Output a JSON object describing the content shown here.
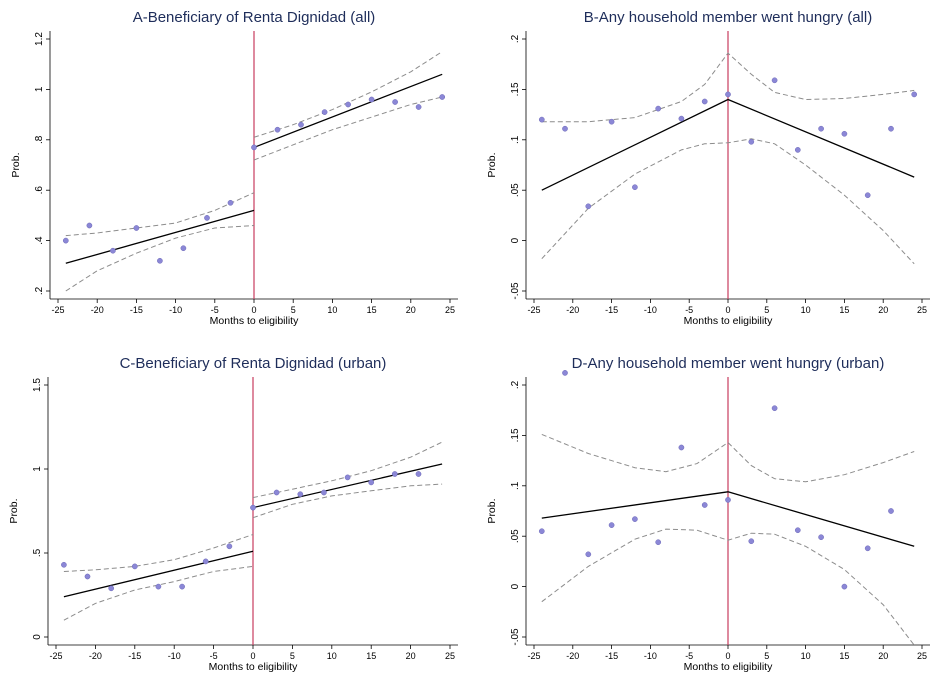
{
  "chart_data": [
    {
      "type": "scatter",
      "title": "A-Beneficiary of Renta Dignidad (all)",
      "xlabel": "Months to eligibility",
      "ylabel": "Prob.",
      "xlim": [
        -25,
        25
      ],
      "ylim": [
        0.2,
        1.2
      ],
      "xticks": [
        -25,
        -20,
        -15,
        -10,
        -5,
        0,
        5,
        10,
        15,
        20,
        25
      ],
      "xticklabels": [
        "-25",
        "-20",
        "-15",
        "-10",
        "-5",
        "0",
        "5",
        "10",
        "15",
        "20",
        "25"
      ],
      "yticks": [
        0.2,
        0.4,
        0.6,
        0.8,
        1,
        1.2
      ],
      "yticklabels": [
        ".2",
        ".4",
        ".6",
        ".8",
        "1",
        "1.2"
      ],
      "cutoff": 0,
      "points": [
        [
          -24,
          0.4
        ],
        [
          -21,
          0.46
        ],
        [
          -18,
          0.36
        ],
        [
          -15,
          0.45
        ],
        [
          -12,
          0.32
        ],
        [
          -9,
          0.37
        ],
        [
          -6,
          0.49
        ],
        [
          -3,
          0.55
        ],
        [
          0,
          0.77
        ],
        [
          3,
          0.84
        ],
        [
          6,
          0.86
        ],
        [
          9,
          0.91
        ],
        [
          12,
          0.94
        ],
        [
          15,
          0.96
        ],
        [
          18,
          0.95
        ],
        [
          21,
          0.93
        ],
        [
          24,
          0.97
        ]
      ],
      "fit_left": [
        [
          -24,
          0.31
        ],
        [
          0,
          0.52
        ]
      ],
      "fit_right": [
        [
          0,
          0.77
        ],
        [
          24,
          1.06
        ]
      ],
      "ci_upper": [
        [
          -24,
          0.42
        ],
        [
          -20,
          0.43
        ],
        [
          -15,
          0.45
        ],
        [
          -10,
          0.47
        ],
        [
          -5,
          0.52
        ],
        [
          0,
          0.59
        ],
        [
          0,
          0.81
        ],
        [
          5,
          0.86
        ],
        [
          10,
          0.92
        ],
        [
          15,
          0.99
        ],
        [
          20,
          1.07
        ],
        [
          24,
          1.15
        ]
      ],
      "ci_lower": [
        [
          -24,
          0.2
        ],
        [
          -20,
          0.28
        ],
        [
          -15,
          0.35
        ],
        [
          -10,
          0.41
        ],
        [
          -5,
          0.45
        ],
        [
          0,
          0.46
        ],
        [
          0,
          0.72
        ],
        [
          5,
          0.78
        ],
        [
          10,
          0.84
        ],
        [
          15,
          0.89
        ],
        [
          20,
          0.94
        ],
        [
          24,
          0.97
        ]
      ],
      "colors": {
        "points": "#8b87d6",
        "fit": "#000000",
        "ci": "#8c8c8c",
        "cutoff": "#c83c5f",
        "title": "#1e2d5a"
      }
    },
    {
      "type": "scatter",
      "title": "B-Any household member went hungry (all)",
      "xlabel": "Months to eligibility",
      "ylabel": "Prob.",
      "xlim": [
        -25,
        25
      ],
      "ylim": [
        -0.05,
        0.2
      ],
      "xticks": [
        -25,
        -20,
        -15,
        -10,
        -5,
        0,
        5,
        10,
        15,
        20,
        25
      ],
      "xticklabels": [
        "-25",
        "-20",
        "-15",
        "-10",
        "-5",
        "0",
        "5",
        "10",
        "15",
        "20",
        "25"
      ],
      "yticks": [
        -0.05,
        0,
        0.05,
        0.1,
        0.15,
        0.2
      ],
      "yticklabels": [
        "-.05",
        "0",
        ".05",
        ".1",
        ".15",
        ".2"
      ],
      "cutoff": 0,
      "points": [
        [
          -24,
          0.12
        ],
        [
          -21,
          0.111
        ],
        [
          -18,
          0.034
        ],
        [
          -15,
          0.118
        ],
        [
          -12,
          0.053
        ],
        [
          -9,
          0.131
        ],
        [
          -6,
          0.121
        ],
        [
          -3,
          0.138
        ],
        [
          0,
          0.145
        ],
        [
          3,
          0.098
        ],
        [
          6,
          0.159
        ],
        [
          9,
          0.09
        ],
        [
          12,
          0.111
        ],
        [
          15,
          0.106
        ],
        [
          18,
          0.045
        ],
        [
          21,
          0.111
        ],
        [
          24,
          0.145
        ]
      ],
      "fit_left": [
        [
          -24,
          0.05
        ],
        [
          0,
          0.14
        ]
      ],
      "fit_right": [
        [
          0,
          0.14
        ],
        [
          24,
          0.063
        ]
      ],
      "ci_upper": [
        [
          -24,
          0.118
        ],
        [
          -18,
          0.118
        ],
        [
          -12,
          0.122
        ],
        [
          -6,
          0.138
        ],
        [
          -3,
          0.155
        ],
        [
          0,
          0.186
        ],
        [
          3,
          0.165
        ],
        [
          6,
          0.147
        ],
        [
          10,
          0.14
        ],
        [
          15,
          0.141
        ],
        [
          20,
          0.145
        ],
        [
          24,
          0.149
        ]
      ],
      "ci_lower": [
        [
          -24,
          -0.018
        ],
        [
          -18,
          0.032
        ],
        [
          -12,
          0.066
        ],
        [
          -6,
          0.09
        ],
        [
          -3,
          0.096
        ],
        [
          0,
          0.097
        ],
        [
          3,
          0.101
        ],
        [
          6,
          0.096
        ],
        [
          10,
          0.075
        ],
        [
          15,
          0.045
        ],
        [
          20,
          0.01
        ],
        [
          24,
          -0.023
        ]
      ],
      "colors": {
        "points": "#8b87d6",
        "fit": "#000000",
        "ci": "#8c8c8c",
        "cutoff": "#c83c5f",
        "title": "#1e2d5a"
      }
    },
    {
      "type": "scatter",
      "title": "C-Beneficiary of Renta Dignidad (urban)",
      "xlabel": "Months to eligibility",
      "ylabel": "Prob.",
      "xlim": [
        -25,
        25
      ],
      "ylim": [
        0,
        1.5
      ],
      "xticks": [
        -25,
        -20,
        -15,
        -10,
        -5,
        0,
        5,
        10,
        15,
        20,
        25
      ],
      "xticklabels": [
        "-25",
        "-20",
        "-15",
        "-10",
        "-5",
        "0",
        "5",
        "10",
        "15",
        "20",
        "25"
      ],
      "yticks": [
        0,
        0.5,
        1,
        1.5
      ],
      "yticklabels": [
        "0",
        ".5",
        "1",
        "1.5"
      ],
      "cutoff": 0,
      "points": [
        [
          -24,
          0.43
        ],
        [
          -21,
          0.36
        ],
        [
          -18,
          0.29
        ],
        [
          -15,
          0.42
        ],
        [
          -12,
          0.3
        ],
        [
          -9,
          0.3
        ],
        [
          -6,
          0.45
        ],
        [
          -3,
          0.54
        ],
        [
          0,
          0.77
        ],
        [
          3,
          0.86
        ],
        [
          6,
          0.85
        ],
        [
          9,
          0.86
        ],
        [
          12,
          0.95
        ],
        [
          15,
          0.92
        ],
        [
          18,
          0.97
        ],
        [
          21,
          0.97
        ]
      ],
      "fit_left": [
        [
          -24,
          0.24
        ],
        [
          0,
          0.51
        ]
      ],
      "fit_right": [
        [
          0,
          0.77
        ],
        [
          24,
          1.03
        ]
      ],
      "ci_upper": [
        [
          -24,
          0.39
        ],
        [
          -20,
          0.4
        ],
        [
          -15,
          0.42
        ],
        [
          -10,
          0.46
        ],
        [
          -5,
          0.53
        ],
        [
          0,
          0.61
        ],
        [
          0,
          0.83
        ],
        [
          5,
          0.88
        ],
        [
          10,
          0.93
        ],
        [
          15,
          0.99
        ],
        [
          20,
          1.07
        ],
        [
          24,
          1.16
        ]
      ],
      "ci_lower": [
        [
          -24,
          0.1
        ],
        [
          -20,
          0.2
        ],
        [
          -15,
          0.28
        ],
        [
          -10,
          0.33
        ],
        [
          -5,
          0.39
        ],
        [
          0,
          0.42
        ],
        [
          0,
          0.71
        ],
        [
          5,
          0.79
        ],
        [
          10,
          0.84
        ],
        [
          15,
          0.87
        ],
        [
          20,
          0.9
        ],
        [
          24,
          0.91
        ]
      ],
      "colors": {
        "points": "#8b87d6",
        "fit": "#000000",
        "ci": "#8c8c8c",
        "cutoff": "#c83c5f",
        "title": "#1e2d5a"
      }
    },
    {
      "type": "scatter",
      "title": "D-Any household member went hungry (urban)",
      "xlabel": "Months to eligibility",
      "ylabel": "Prob.",
      "xlim": [
        -25,
        25
      ],
      "ylim": [
        -0.05,
        0.2
      ],
      "xticks": [
        -25,
        -20,
        -15,
        -10,
        -5,
        0,
        5,
        10,
        15,
        20,
        25
      ],
      "xticklabels": [
        "-25",
        "-20",
        "-15",
        "-10",
        "-5",
        "0",
        "5",
        "10",
        "15",
        "20",
        "25"
      ],
      "yticks": [
        -0.05,
        0,
        0.05,
        0.1,
        0.15,
        0.2
      ],
      "yticklabels": [
        "-.05",
        "0",
        ".05",
        ".1",
        ".15",
        ".2"
      ],
      "cutoff": 0,
      "points": [
        [
          -24,
          0.055
        ],
        [
          -21,
          0.212
        ],
        [
          -18,
          0.032
        ],
        [
          -15,
          0.061
        ],
        [
          -12,
          0.067
        ],
        [
          -9,
          0.044
        ],
        [
          -6,
          0.138
        ],
        [
          -3,
          0.081
        ],
        [
          0,
          0.086
        ],
        [
          3,
          0.045
        ],
        [
          6,
          0.177
        ],
        [
          9,
          0.056
        ],
        [
          12,
          0.049
        ],
        [
          15,
          0.0
        ],
        [
          18,
          0.038
        ],
        [
          21,
          0.075
        ]
      ],
      "fit_left": [
        [
          -24,
          0.068
        ],
        [
          0,
          0.094
        ]
      ],
      "fit_right": [
        [
          0,
          0.094
        ],
        [
          24,
          0.04
        ]
      ],
      "ci_upper": [
        [
          -24,
          0.151
        ],
        [
          -18,
          0.132
        ],
        [
          -12,
          0.118
        ],
        [
          -8,
          0.114
        ],
        [
          -4,
          0.122
        ],
        [
          0,
          0.143
        ],
        [
          3,
          0.12
        ],
        [
          6,
          0.107
        ],
        [
          10,
          0.104
        ],
        [
          15,
          0.111
        ],
        [
          20,
          0.123
        ],
        [
          24,
          0.134
        ]
      ],
      "ci_lower": [
        [
          -24,
          -0.015
        ],
        [
          -18,
          0.02
        ],
        [
          -12,
          0.047
        ],
        [
          -8,
          0.057
        ],
        [
          -4,
          0.056
        ],
        [
          0,
          0.046
        ],
        [
          3,
          0.053
        ],
        [
          6,
          0.052
        ],
        [
          10,
          0.04
        ],
        [
          15,
          0.017
        ],
        [
          20,
          -0.018
        ],
        [
          24,
          -0.058
        ]
      ],
      "colors": {
        "points": "#8b87d6",
        "fit": "#000000",
        "ci": "#8c8c8c",
        "cutoff": "#c83c5f",
        "title": "#1e2d5a"
      }
    }
  ]
}
